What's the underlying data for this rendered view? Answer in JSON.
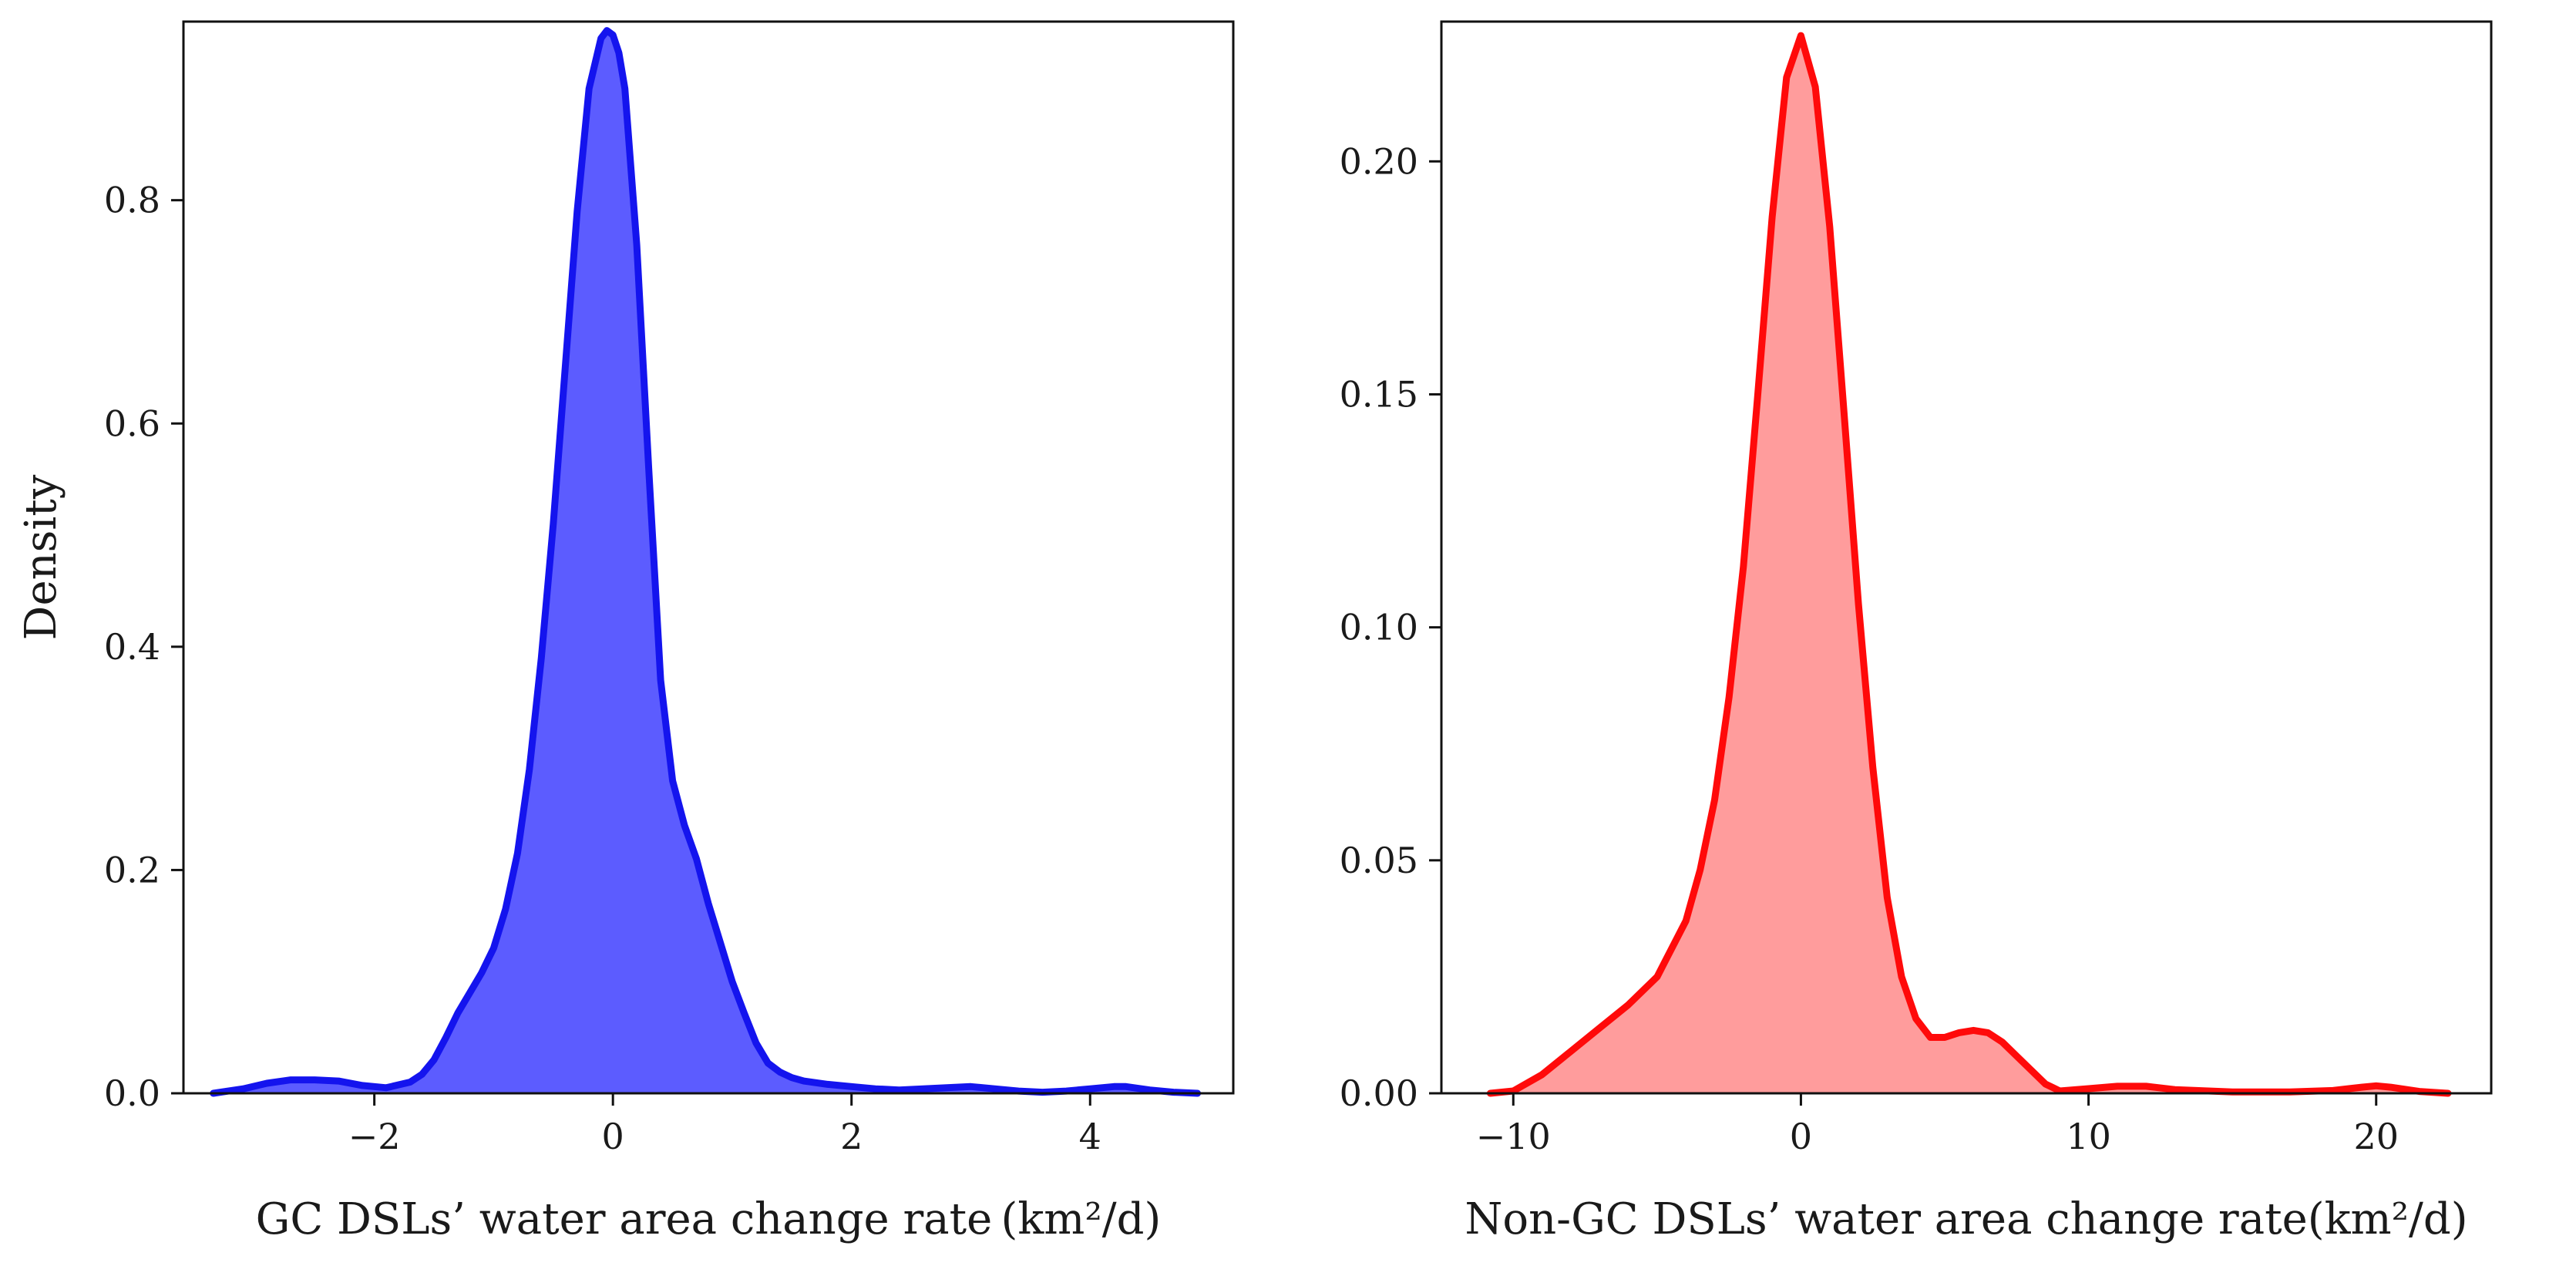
{
  "chart_data": [
    {
      "type": "area",
      "title": "",
      "xlabel": "GC DSLs’ water area change rate (km²/d)",
      "ylabel": "Density",
      "xlim": [
        -3.6,
        5.2
      ],
      "ylim": [
        0,
        0.96
      ],
      "xticks": [
        -2,
        0,
        2,
        4
      ],
      "xtick_labels": [
        "−2",
        "0",
        "2",
        "4"
      ],
      "yticks": [
        0.0,
        0.2,
        0.4,
        0.6,
        0.8
      ],
      "ytick_labels": [
        "0.0",
        "0.2",
        "0.4",
        "0.6",
        "0.8"
      ],
      "series": [
        {
          "name": "GC DSLs",
          "x": [
            -3.35,
            -3.1,
            -2.9,
            -2.7,
            -2.5,
            -2.3,
            -2.1,
            -1.9,
            -1.7,
            -1.6,
            -1.5,
            -1.4,
            -1.3,
            -1.2,
            -1.1,
            -1.0,
            -0.9,
            -0.8,
            -0.7,
            -0.6,
            -0.5,
            -0.4,
            -0.3,
            -0.2,
            -0.1,
            -0.05,
            0.0,
            0.05,
            0.1,
            0.2,
            0.3,
            0.4,
            0.5,
            0.6,
            0.7,
            0.8,
            0.9,
            1.0,
            1.1,
            1.2,
            1.3,
            1.4,
            1.5,
            1.6,
            1.8,
            2.0,
            2.2,
            2.4,
            2.6,
            2.8,
            3.0,
            3.2,
            3.4,
            3.6,
            3.8,
            4.0,
            4.2,
            4.3,
            4.5,
            4.7,
            4.9
          ],
          "y": [
            0.0,
            0.004,
            0.009,
            0.012,
            0.012,
            0.011,
            0.007,
            0.005,
            0.01,
            0.017,
            0.03,
            0.05,
            0.072,
            0.09,
            0.108,
            0.13,
            0.165,
            0.215,
            0.29,
            0.39,
            0.51,
            0.65,
            0.79,
            0.9,
            0.945,
            0.952,
            0.948,
            0.932,
            0.9,
            0.76,
            0.56,
            0.37,
            0.28,
            0.24,
            0.21,
            0.17,
            0.135,
            0.1,
            0.072,
            0.045,
            0.027,
            0.019,
            0.014,
            0.011,
            0.008,
            0.006,
            0.004,
            0.003,
            0.004,
            0.005,
            0.006,
            0.004,
            0.002,
            0.001,
            0.002,
            0.004,
            0.006,
            0.006,
            0.003,
            0.001,
            0.0
          ],
          "line_color": "#1414ee",
          "fill_color": "#5c5cff"
        }
      ]
    },
    {
      "type": "area",
      "title": "",
      "xlabel": "Non-GC DSLs’ water area change rate(km²/d)",
      "ylabel": "",
      "xlim": [
        -12.5,
        24.0
      ],
      "ylim": [
        0,
        0.23
      ],
      "xticks": [
        -10,
        0,
        10,
        20
      ],
      "xtick_labels": [
        "−10",
        "0",
        "10",
        "20"
      ],
      "yticks": [
        0.0,
        0.05,
        0.1,
        0.15,
        0.2
      ],
      "ytick_labels": [
        "0.00",
        "0.05",
        "0.10",
        "0.15",
        "0.20"
      ],
      "series": [
        {
          "name": "Non-GC DSLs",
          "x": [
            -10.8,
            -10.0,
            -9.0,
            -8.0,
            -7.0,
            -6.0,
            -5.0,
            -4.0,
            -3.5,
            -3.0,
            -2.5,
            -2.0,
            -1.5,
            -1.0,
            -0.5,
            0.0,
            0.5,
            1.0,
            1.5,
            2.0,
            2.5,
            3.0,
            3.5,
            4.0,
            4.5,
            5.0,
            5.5,
            6.0,
            6.5,
            7.0,
            7.5,
            8.0,
            8.5,
            9.0,
            10.0,
            11.0,
            12.0,
            13.0,
            15.0,
            17.0,
            18.5,
            19.5,
            20.0,
            20.5,
            21.5,
            22.5
          ],
          "y": [
            0.0,
            0.0005,
            0.004,
            0.009,
            0.014,
            0.019,
            0.025,
            0.037,
            0.048,
            0.063,
            0.085,
            0.113,
            0.15,
            0.188,
            0.218,
            0.227,
            0.216,
            0.186,
            0.146,
            0.105,
            0.07,
            0.042,
            0.025,
            0.016,
            0.012,
            0.012,
            0.013,
            0.0135,
            0.013,
            0.011,
            0.008,
            0.005,
            0.002,
            0.0005,
            0.001,
            0.0015,
            0.0015,
            0.0008,
            0.0003,
            0.0003,
            0.0006,
            0.0013,
            0.0016,
            0.0013,
            0.0004,
            0.0
          ],
          "line_color": "#ff0a0a",
          "fill_color": "#ff9c9c"
        }
      ]
    }
  ]
}
